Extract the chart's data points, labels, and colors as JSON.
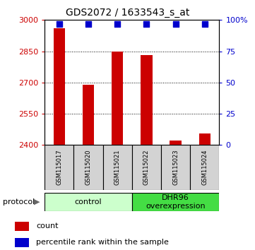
{
  "title": "GDS2072 / 1633543_s_at",
  "samples": [
    "GSM115017",
    "GSM115020",
    "GSM115021",
    "GSM115022",
    "GSM115023",
    "GSM115024"
  ],
  "bar_values": [
    2960,
    2690,
    2850,
    2830,
    2420,
    2455
  ],
  "percentile_values": [
    97,
    97,
    97,
    97,
    97,
    97
  ],
  "bar_bottom": 2400,
  "ylim_left": [
    2400,
    3000
  ],
  "ylim_right": [
    0,
    100
  ],
  "yticks_left": [
    2400,
    2550,
    2700,
    2850,
    3000
  ],
  "yticks_right": [
    0,
    25,
    50,
    75,
    100
  ],
  "ytick_labels_left": [
    "2400",
    "2550",
    "2700",
    "2850",
    "3000"
  ],
  "ytick_labels_right": [
    "0",
    "25",
    "50",
    "75",
    "100%"
  ],
  "bar_color": "#cc0000",
  "dot_color": "#0000cc",
  "groups": [
    {
      "label": "control",
      "start": 0,
      "end": 3,
      "color": "#ccffcc"
    },
    {
      "label": "DHR96\noverexpression",
      "start": 3,
      "end": 6,
      "color": "#44dd44"
    }
  ],
  "protocol_label": "protocol",
  "legend_items": [
    {
      "color": "#cc0000",
      "label": "count"
    },
    {
      "color": "#0000cc",
      "label": "percentile rank within the sample"
    }
  ],
  "bar_width": 0.4,
  "dot_size": 28,
  "title_fontsize": 10,
  "tick_fontsize": 8,
  "sample_fontsize": 6,
  "group_fontsize": 8,
  "legend_fontsize": 8
}
